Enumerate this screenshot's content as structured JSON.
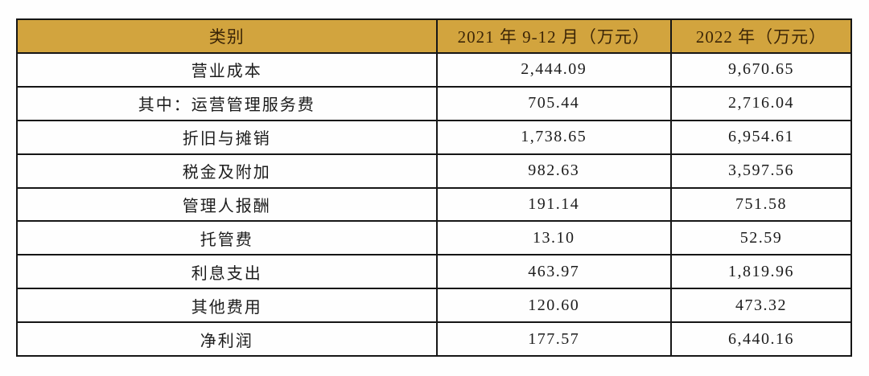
{
  "table": {
    "columns": {
      "category": "类别",
      "period_2021": "2021 年 9-12 月（万元）",
      "period_2022": "2022 年（万元）"
    },
    "rows": [
      {
        "label": "营业成本",
        "v2021": "2,444.09",
        "v2022": "9,670.65"
      },
      {
        "label": "其中：运营管理服务费",
        "v2021": "705.44",
        "v2022": "2,716.04"
      },
      {
        "label": "折旧与摊销",
        "v2021": "1,738.65",
        "v2022": "6,954.61"
      },
      {
        "label": "税金及附加",
        "v2021": "982.63",
        "v2022": "3,597.56"
      },
      {
        "label": "管理人报酬",
        "v2021": "191.14",
        "v2022": "751.58"
      },
      {
        "label": "托管费",
        "v2021": "13.10",
        "v2022": "52.59"
      },
      {
        "label": "利息支出",
        "v2021": "463.97",
        "v2022": "1,819.96"
      },
      {
        "label": "其他费用",
        "v2021": "120.60",
        "v2022": "473.32"
      },
      {
        "label": "净利润",
        "v2021": "177.57",
        "v2022": "6,440.16"
      }
    ]
  },
  "colors": {
    "header_bg": "#d2a43e",
    "header_text": "#3b2507",
    "body_text": "#1c1c1c",
    "border": "#161616",
    "page_bg": "#fefefe"
  }
}
